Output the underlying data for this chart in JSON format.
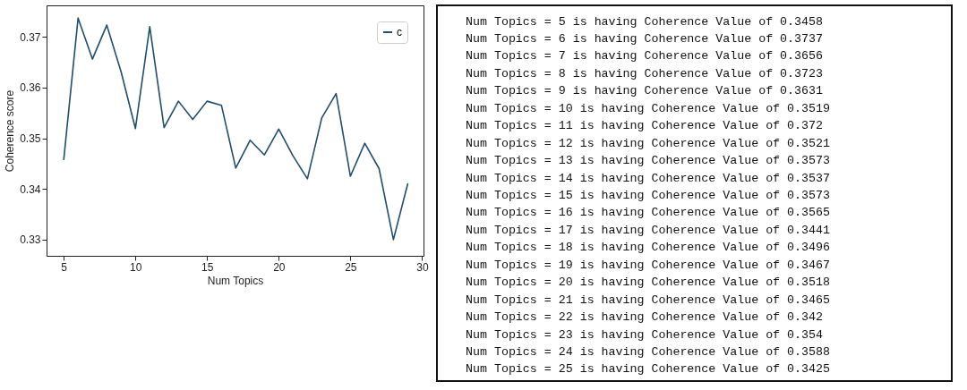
{
  "chart_data": [
    {
      "type": "line",
      "xlabel": "Num Topics",
      "ylabel": "Coherence score",
      "x": [
        5,
        6,
        7,
        8,
        9,
        10,
        11,
        12,
        13,
        14,
        15,
        16,
        17,
        18,
        19,
        20,
        21,
        22,
        23,
        24,
        25,
        26,
        27,
        28,
        29
      ],
      "series": [
        {
          "name": "c",
          "color": "#1f4e70",
          "values": [
            0.3458,
            0.3737,
            0.3656,
            0.3723,
            0.3631,
            0.3519,
            0.372,
            0.3521,
            0.3573,
            0.3537,
            0.3573,
            0.3565,
            0.3441,
            0.3496,
            0.3467,
            0.3518,
            0.3465,
            0.342,
            0.354,
            0.3588,
            0.3425,
            0.349,
            0.344,
            0.33,
            0.341
          ]
        }
      ],
      "xlim": [
        3.8,
        30.1
      ],
      "ylim": [
        0.3268,
        0.3762
      ],
      "xticks": [
        5,
        10,
        15,
        20,
        25,
        30
      ],
      "yticks": [
        0.33,
        0.34,
        0.35,
        0.36,
        0.37
      ],
      "grid": false,
      "legend": "top right"
    },
    {
      "type": "other",
      "annotations": [
        "Num Topics = 5  is having Coherence Value of 0.3458",
        "Num Topics = 6  is having Coherence Value of 0.3737",
        "Num Topics = 7  is having Coherence Value of 0.3656",
        "Num Topics = 8  is having Coherence Value of 0.3723",
        "Num Topics = 9  is having Coherence Value of 0.3631",
        "Num Topics = 10  is having Coherence Value of 0.3519",
        "Num Topics = 11  is having Coherence Value of 0.372",
        "Num Topics = 12  is having Coherence Value of 0.3521",
        "Num Topics = 13  is having Coherence Value of 0.3573",
        "Num Topics = 14  is having Coherence Value of 0.3537",
        "Num Topics = 15  is having Coherence Value of 0.3573",
        "Num Topics = 16  is having Coherence Value of 0.3565",
        "Num Topics = 17  is having Coherence Value of 0.3441",
        "Num Topics = 18  is having Coherence Value of 0.3496",
        "Num Topics = 19  is having Coherence Value of 0.3467",
        "Num Topics = 20  is having Coherence Value of 0.3518",
        "Num Topics = 21  is having Coherence Value of 0.3465",
        "Num Topics = 22  is having Coherence Value of 0.342",
        "Num Topics = 23  is having Coherence Value of 0.354",
        "Num Topics = 24  is having Coherence Value of 0.3588",
        "Num Topics = 25  is having Coherence Value of 0.3425"
      ]
    }
  ]
}
